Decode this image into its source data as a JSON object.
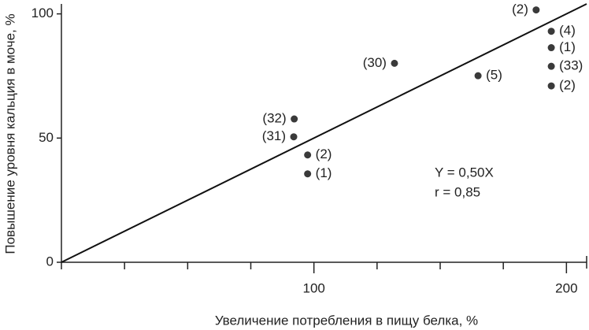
{
  "chart_data": {
    "type": "scatter",
    "x_label": "Увеличение потребления в пищу белка, %",
    "y_label": "Повышение уровня кальция в моче, %",
    "x": [
      92.2,
      92,
      97.5,
      97.5,
      131.9,
      165,
      188,
      194,
      194,
      194,
      194
    ],
    "values": [
      57.7,
      50.5,
      43.2,
      35.6,
      80.1,
      75.1,
      101.6,
      93,
      86.4,
      78.9,
      71
    ],
    "point_labels": [
      "(32)",
      "(31)",
      "(2)",
      "(1)",
      "(30)",
      "(5)",
      "(2)",
      "(4)",
      "(1)",
      "(33)",
      "(2)"
    ],
    "color": "#3a3a3a",
    "xlim": [
      0,
      208
    ],
    "ylim": [
      0,
      104
    ],
    "xticks": [
      100,
      200
    ],
    "xminor_ticks": [
      0,
      25,
      50,
      75,
      125,
      150,
      175
    ],
    "yticks": [
      0,
      50,
      100
    ],
    "fit_slope": 0.5,
    "annotations": [
      "Y = 0,50X",
      "r = 0,85"
    ]
  }
}
